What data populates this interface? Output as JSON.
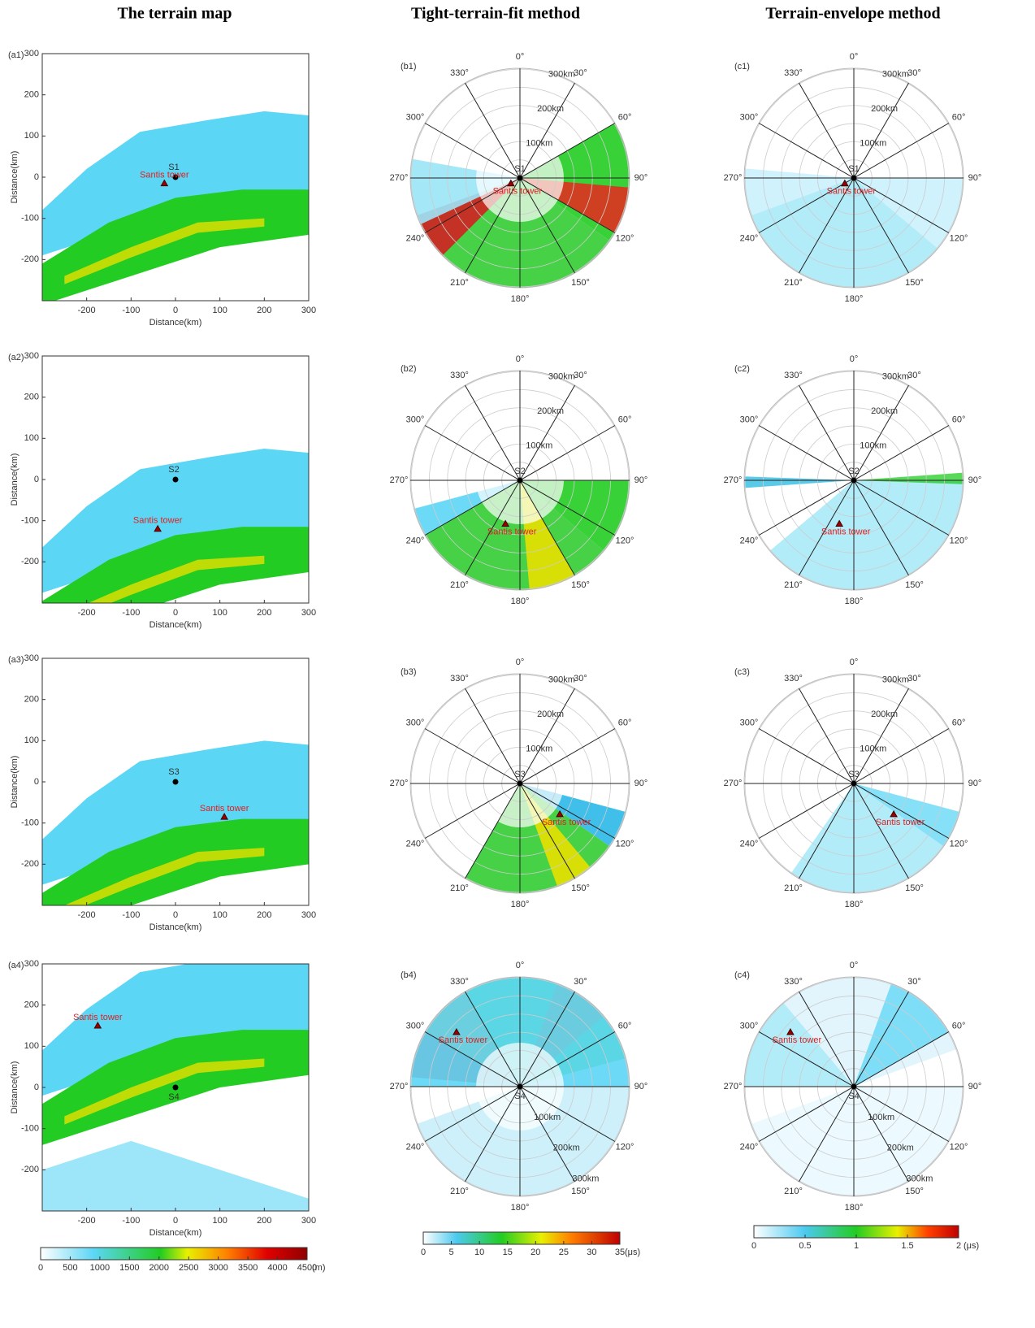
{
  "column_titles": [
    "The terrain map",
    "Tight-terrain-fit method",
    "Terrain-envelope method"
  ],
  "map": {
    "x_label": "Distance(km)",
    "y_label": "Distance(km)",
    "xlim": [
      -300,
      300
    ],
    "ylim": [
      -300,
      300
    ],
    "xticks": [
      -200,
      -100,
      0,
      100,
      200,
      300
    ],
    "yticks": [
      -200,
      -100,
      0,
      100,
      200,
      300
    ],
    "tower_label": "Santis tower"
  },
  "maps": [
    {
      "label": "(a1)",
      "station": "S1",
      "station_xy": [
        0,
        0
      ],
      "tower_xy": [
        -25,
        -15
      ]
    },
    {
      "label": "(a2)",
      "station": "S2",
      "station_xy": [
        0,
        0
      ],
      "tower_xy": [
        -40,
        -120
      ]
    },
    {
      "label": "(a3)",
      "station": "S3",
      "station_xy": [
        0,
        0
      ],
      "tower_xy": [
        110,
        -85
      ]
    },
    {
      "label": "(a4)",
      "station": "S4",
      "station_xy": [
        0,
        0
      ],
      "tower_xy": [
        -175,
        150
      ]
    }
  ],
  "polar": {
    "angle_labels": [
      "0°",
      "30°",
      "60°",
      "90°",
      "120°",
      "150°",
      "180°",
      "210°",
      "240°",
      "270°",
      "300°",
      "330°"
    ],
    "range_labels": [
      "100km",
      "200km",
      "300km"
    ]
  },
  "tight": [
    {
      "label": "(b1)"
    },
    {
      "label": "(b2)"
    },
    {
      "label": "(b3)"
    },
    {
      "label": "(b4)"
    }
  ],
  "envelope": [
    {
      "label": "(c1)"
    },
    {
      "label": "(c2)"
    },
    {
      "label": "(c3)"
    },
    {
      "label": "(c4)"
    }
  ],
  "colorbars": [
    {
      "lim": [
        0,
        4500
      ],
      "ticks": [
        0,
        500,
        1000,
        1500,
        2000,
        2500,
        3000,
        3500,
        4000,
        4500
      ],
      "unit": "(m)"
    },
    {
      "lim": [
        0,
        35
      ],
      "ticks": [
        0,
        5,
        10,
        15,
        20,
        25,
        30,
        35
      ],
      "unit": "(μs)"
    },
    {
      "lim": [
        0,
        2
      ],
      "ticks": [
        0,
        0.5,
        1,
        1.5,
        2
      ],
      "unit": "(μs)"
    }
  ]
}
